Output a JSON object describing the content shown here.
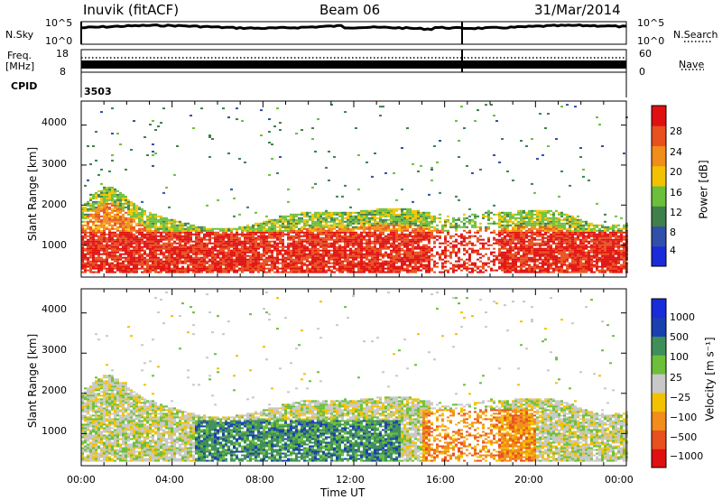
{
  "header": {
    "station": "Inuvik (fitACF)",
    "beam": "Beam 06",
    "date": "31/Mar/2014"
  },
  "top_panels": {
    "nsky_label": "N.Sky",
    "nsky_ticks": [
      "10^5",
      "10^0"
    ],
    "nsearch_label": "N.Search",
    "nsearch_ticks": [
      "10^5",
      "10^0"
    ],
    "freq_label_1": "Freq.",
    "freq_label_2": "[MHz]",
    "freq_ticks": [
      "18",
      "8"
    ],
    "nave_label": "Nave",
    "nave_ticks": [
      "60",
      "0"
    ],
    "cpid_label": "CPID",
    "cpid_value": "3503"
  },
  "colors": {
    "power_scale": [
      "#1a2bd9",
      "#2f4fa8",
      "#3f7f4a",
      "#6bbf3a",
      "#f2c200",
      "#f28c1a",
      "#e8501e",
      "#e01010"
    ],
    "velocity_scale": [
      "#e01010",
      "#e8501e",
      "#f28c1a",
      "#f2c200",
      "#c8c8c8",
      "#6bbf3a",
      "#3f8f5a",
      "#1a3fb0",
      "#1a2bd9"
    ]
  },
  "chart_data": [
    {
      "type": "heatmap",
      "name": "power",
      "ylabel": "Slant Range [km]",
      "yticks": [
        "1000",
        "2000",
        "3000",
        "4000"
      ],
      "ylim": [
        200,
        4600
      ],
      "xticks": [
        "00:00",
        "04:00",
        "08:00",
        "12:00",
        "16:00",
        "20:00",
        "00:00"
      ],
      "xlim_hours": [
        0,
        24
      ],
      "colorbar_label": "Power [dB]",
      "colorbar_ticks": [
        "4",
        "8",
        "12",
        "16",
        "20",
        "24",
        "28"
      ],
      "colorbar_range": [
        0,
        30
      ]
    },
    {
      "type": "heatmap",
      "name": "velocity",
      "ylabel": "Slant Range [km]",
      "yticks": [
        "1000",
        "2000",
        "3000",
        "4000"
      ],
      "ylim": [
        200,
        4600
      ],
      "xticks": [
        "00:00",
        "04:00",
        "08:00",
        "12:00",
        "16:00",
        "20:00",
        "00:00"
      ],
      "xlim_hours": [
        0,
        24
      ],
      "xlabel": "Time UT",
      "colorbar_label": "Velocity [m s⁻¹]",
      "colorbar_ticks": [
        "1000",
        "500",
        "100",
        "25",
        "−25",
        "−100",
        "−500",
        "−1000"
      ]
    }
  ]
}
